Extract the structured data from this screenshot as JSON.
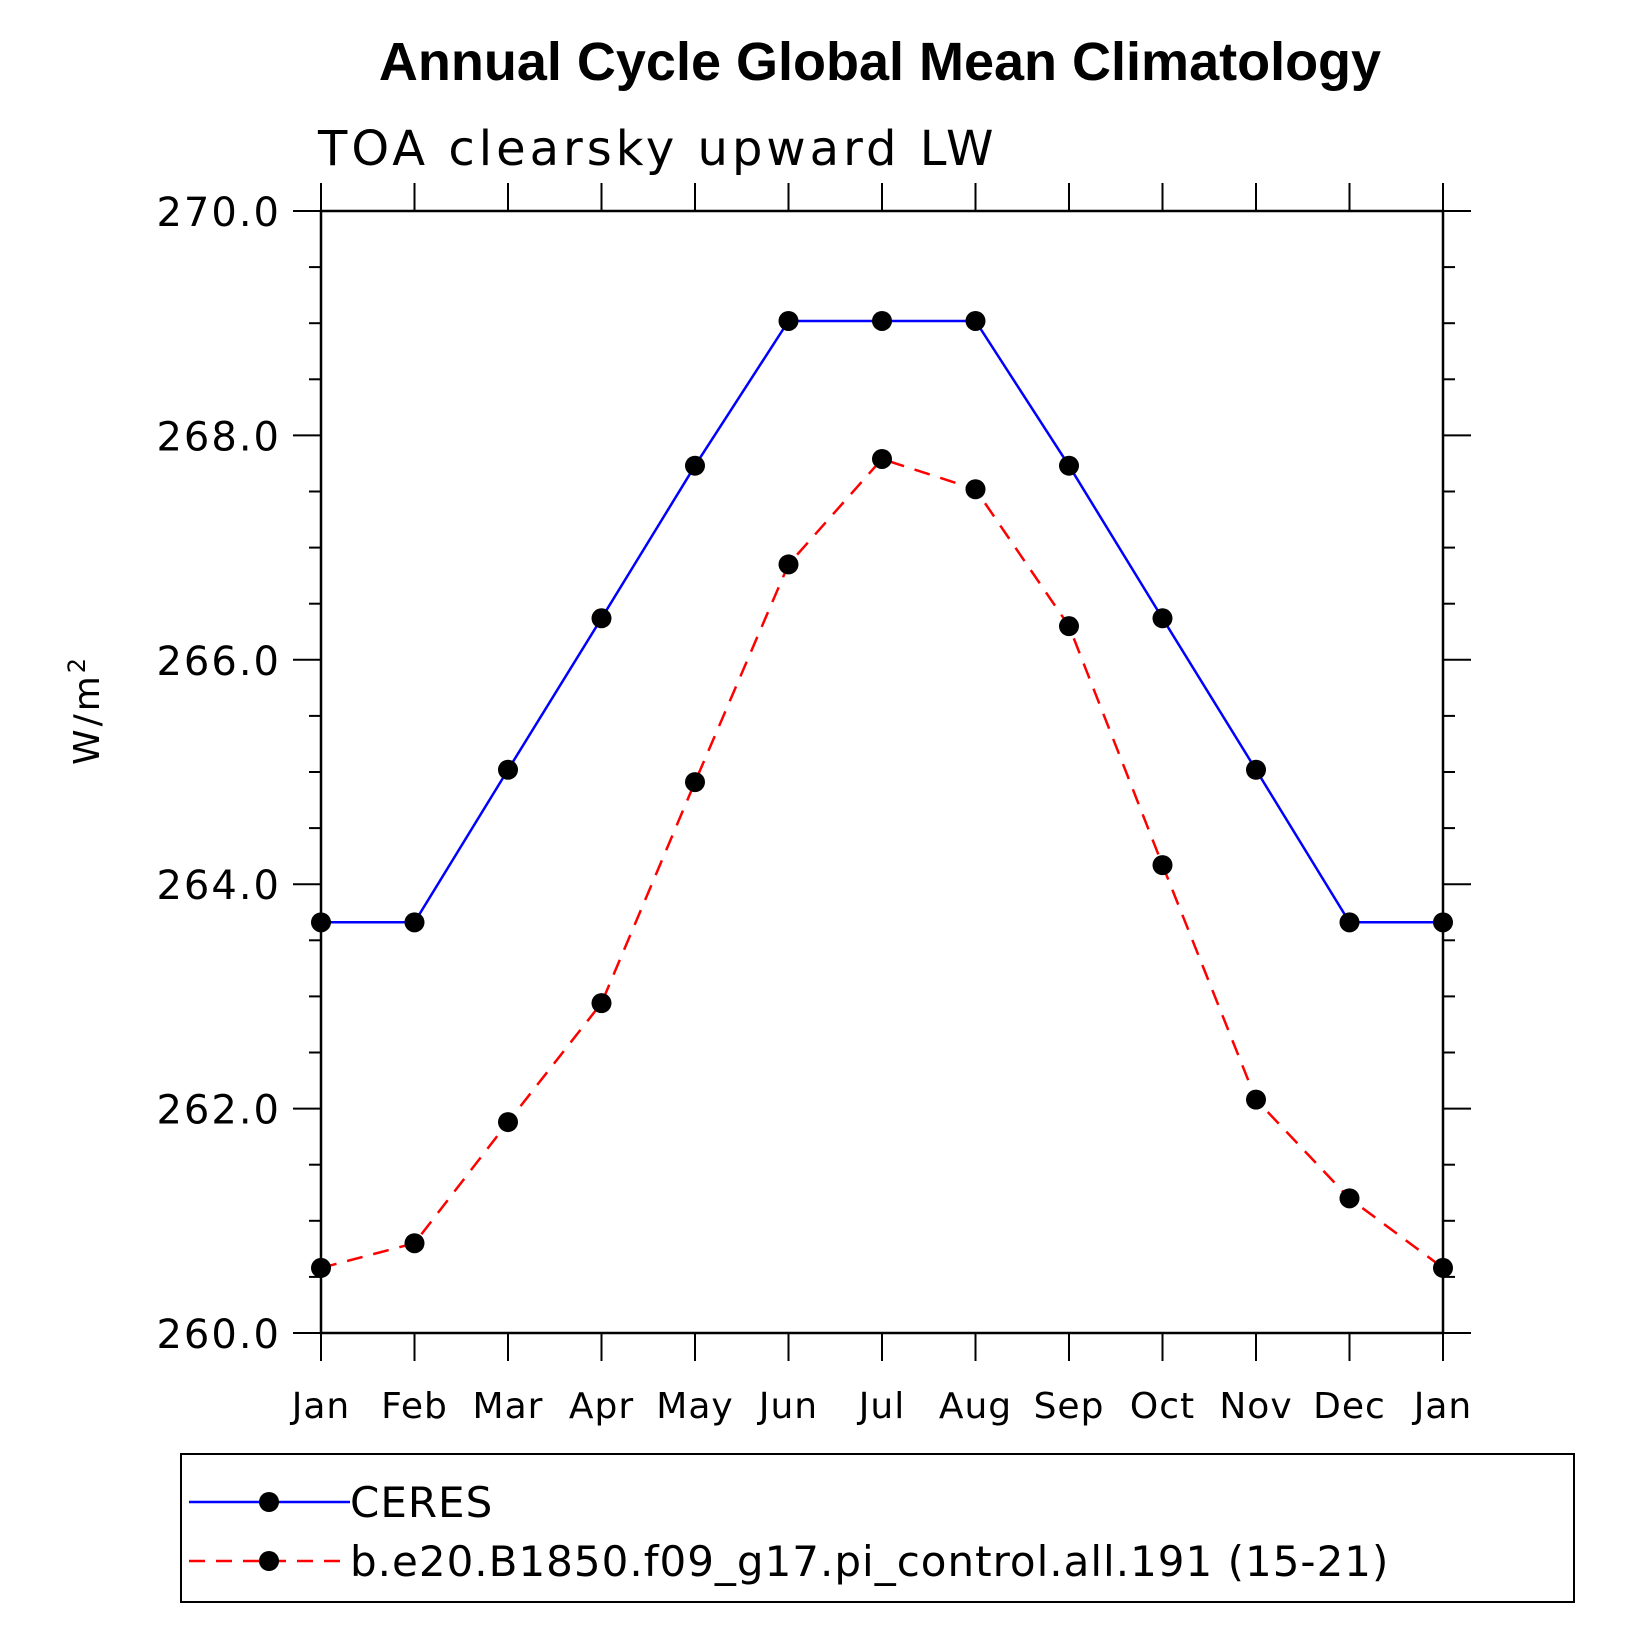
{
  "chart_data": {
    "type": "line",
    "title": "Annual Cycle Global Mean Climatology",
    "subtitle": "TOA clearsky upward LW",
    "ylabel": "W/m",
    "ylabel_sup": "2",
    "xlabel": "",
    "categories": [
      "Jan",
      "Feb",
      "Mar",
      "Apr",
      "May",
      "Jun",
      "Jul",
      "Aug",
      "Sep",
      "Oct",
      "Nov",
      "Dec",
      "Jan"
    ],
    "ylim": [
      260.0,
      270.0
    ],
    "yticks": [
      "260.0",
      "262.0",
      "264.0",
      "266.0",
      "268.0",
      "270.0"
    ],
    "grid": false,
    "legend_position": "bottom",
    "series": [
      {
        "name": "CERES",
        "color": "#0000ff",
        "dash": "solid",
        "values": [
          263.66,
          263.66,
          265.02,
          266.37,
          267.73,
          269.02,
          269.02,
          269.02,
          267.73,
          266.37,
          265.02,
          263.66,
          263.66
        ]
      },
      {
        "name": "b.e20.B1850.f09_g17.pi_control.all.191 (15-21)",
        "color": "#ff0000",
        "dash": "dashed",
        "values": [
          260.58,
          260.8,
          261.88,
          262.94,
          264.91,
          266.85,
          267.79,
          267.52,
          266.3,
          264.17,
          262.08,
          261.2,
          260.58
        ]
      }
    ]
  }
}
